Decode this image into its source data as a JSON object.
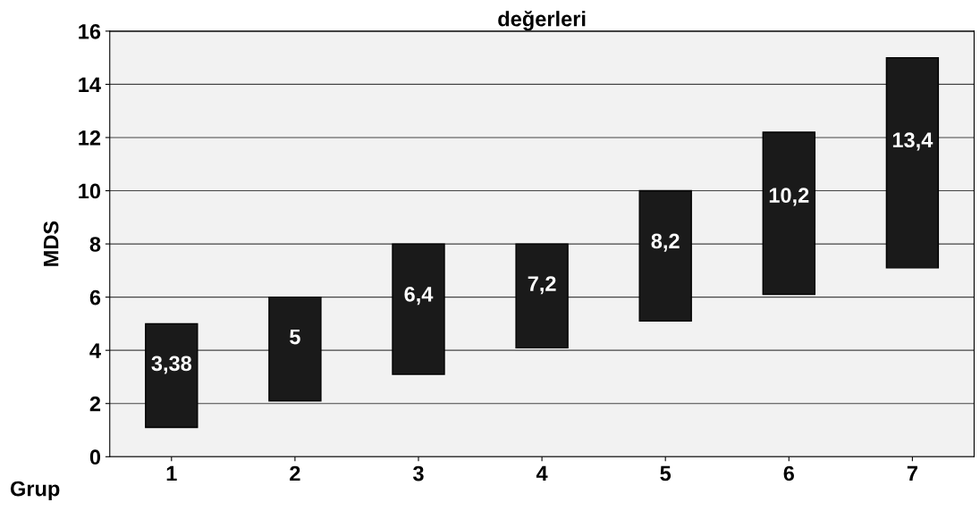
{
  "chart_data": {
    "type": "bar",
    "title": "değerleri",
    "xlabel": "Grup",
    "ylabel": "MDS",
    "categories": [
      "1",
      "2",
      "3",
      "4",
      "5",
      "6",
      "7"
    ],
    "base": [
      1.1,
      2.1,
      3.1,
      4.1,
      5.1,
      6.1,
      7.1
    ],
    "values": [
      3.9,
      3.9,
      4.9,
      3.9,
      4.9,
      6.1,
      7.9
    ],
    "color": "#1a1a1a",
    "annotations": [
      "3,38",
      "5",
      "6,4",
      "7,2",
      "8,2",
      "10,2",
      "13,4"
    ],
    "ylim": [
      0,
      16
    ],
    "yticks": [
      0,
      2,
      4,
      6,
      8,
      10,
      12,
      14,
      16
    ],
    "grid": "y"
  }
}
